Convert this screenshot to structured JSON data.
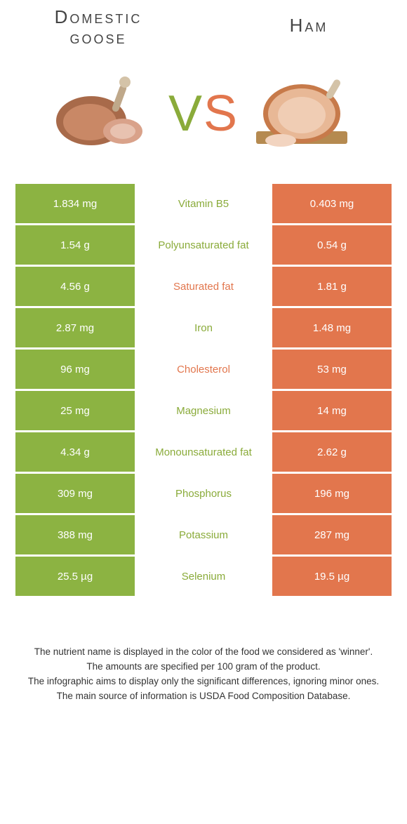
{
  "colors": {
    "left": "#8cb342",
    "right": "#e2764d",
    "left_text": "#8aab3a",
    "right_text": "#e2764d"
  },
  "header": {
    "left_title": "Domestic goose",
    "right_title": "Ham",
    "vs_v": "V",
    "vs_s": "S"
  },
  "rows": [
    {
      "left": "1.834 mg",
      "label": "Vitamin B5",
      "right": "0.403 mg",
      "winner": "left"
    },
    {
      "left": "1.54 g",
      "label": "Polyunsaturated fat",
      "right": "0.54 g",
      "winner": "left"
    },
    {
      "left": "4.56 g",
      "label": "Saturated fat",
      "right": "1.81 g",
      "winner": "right"
    },
    {
      "left": "2.87 mg",
      "label": "Iron",
      "right": "1.48 mg",
      "winner": "left"
    },
    {
      "left": "96 mg",
      "label": "Cholesterol",
      "right": "53 mg",
      "winner": "right"
    },
    {
      "left": "25 mg",
      "label": "Magnesium",
      "right": "14 mg",
      "winner": "left"
    },
    {
      "left": "4.34 g",
      "label": "Monounsaturated fat",
      "right": "2.62 g",
      "winner": "left"
    },
    {
      "left": "309 mg",
      "label": "Phosphorus",
      "right": "196 mg",
      "winner": "left"
    },
    {
      "left": "388 mg",
      "label": "Potassium",
      "right": "287 mg",
      "winner": "left"
    },
    {
      "left": "25.5 µg",
      "label": "Selenium",
      "right": "19.5 µg",
      "winner": "left"
    }
  ],
  "footer": {
    "line1": "The nutrient name is displayed in the color of the food we considered as 'winner'.",
    "line2": "The amounts are specified per 100 gram of the product.",
    "line3": "The infographic aims to display only the significant differences, ignoring minor ones.",
    "line4": "The main source of information is USDA Food Composition Database."
  }
}
